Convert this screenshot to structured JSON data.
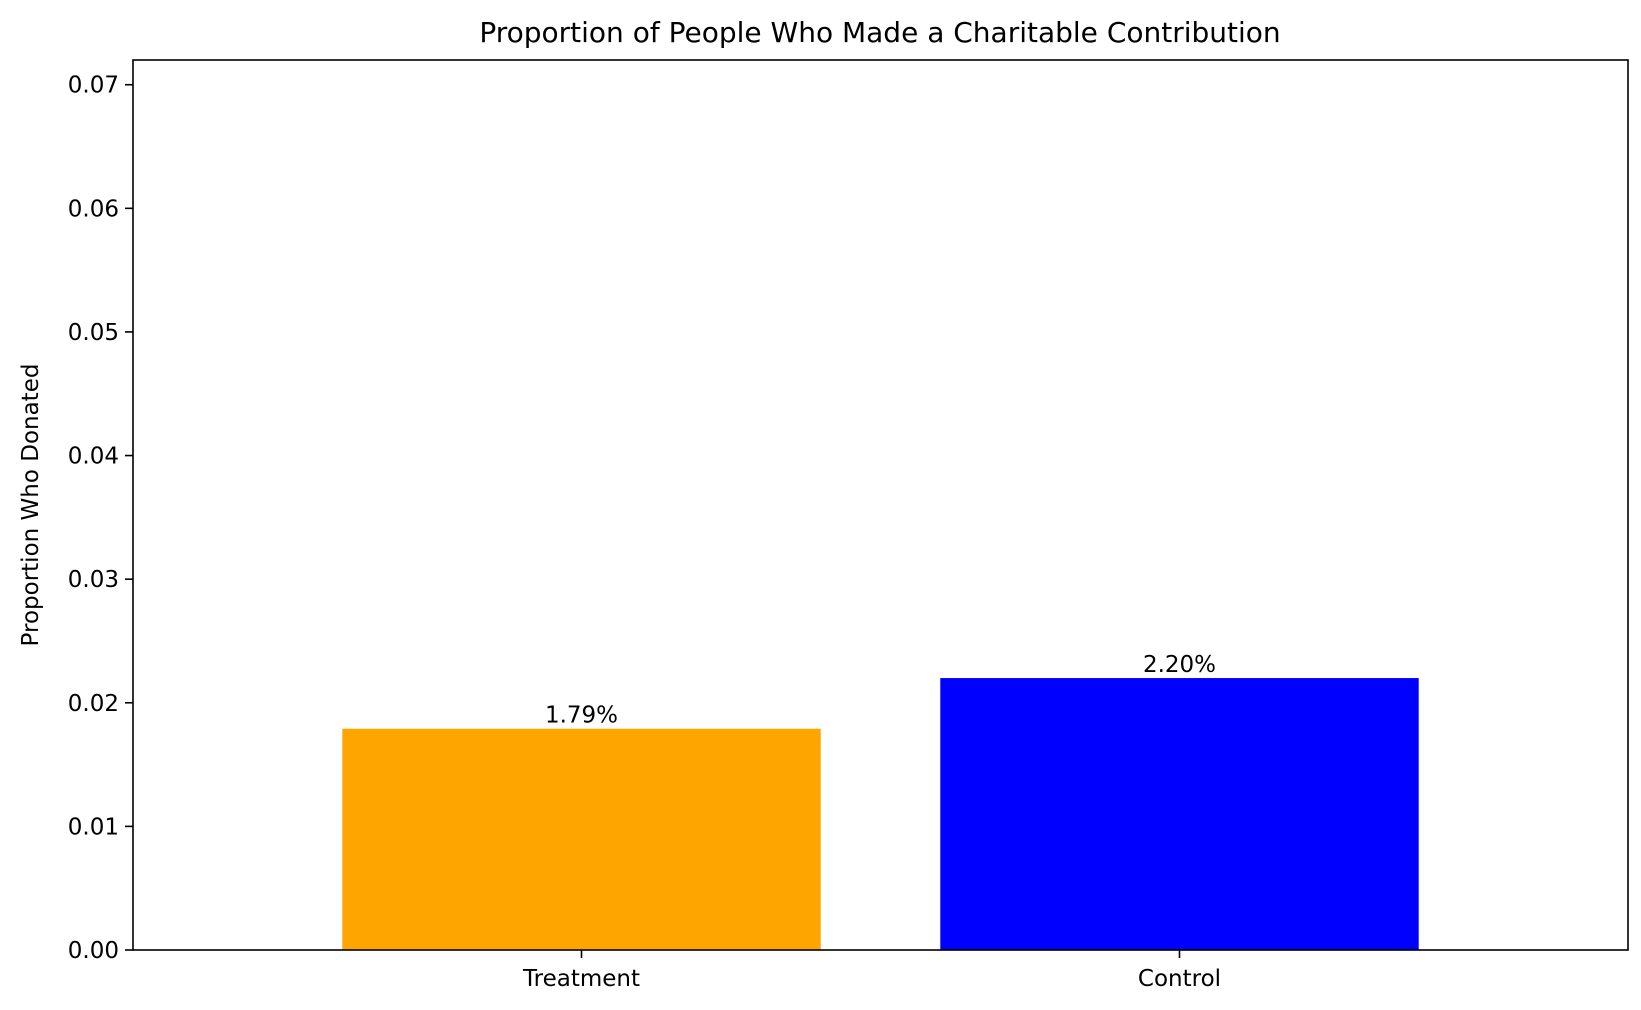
{
  "chart_data": {
    "type": "bar",
    "title": "Proportion of People Who Made a Charitable Contribution",
    "xlabel": "",
    "ylabel": "Proportion Who Donated",
    "categories": [
      "Treatment",
      "Control"
    ],
    "values": [
      0.0179,
      0.022
    ],
    "data_labels": [
      "1.79%",
      "2.20%"
    ],
    "colors": [
      "#FFA500",
      "#0000FF"
    ],
    "ylim": [
      0,
      0.072
    ],
    "yticks": [
      0.0,
      0.01,
      0.02,
      0.03,
      0.04,
      0.05,
      0.06,
      0.07
    ],
    "ytick_labels": [
      "0.00",
      "0.01",
      "0.02",
      "0.03",
      "0.04",
      "0.05",
      "0.06",
      "0.07"
    ],
    "grid": false,
    "legend": "none"
  }
}
